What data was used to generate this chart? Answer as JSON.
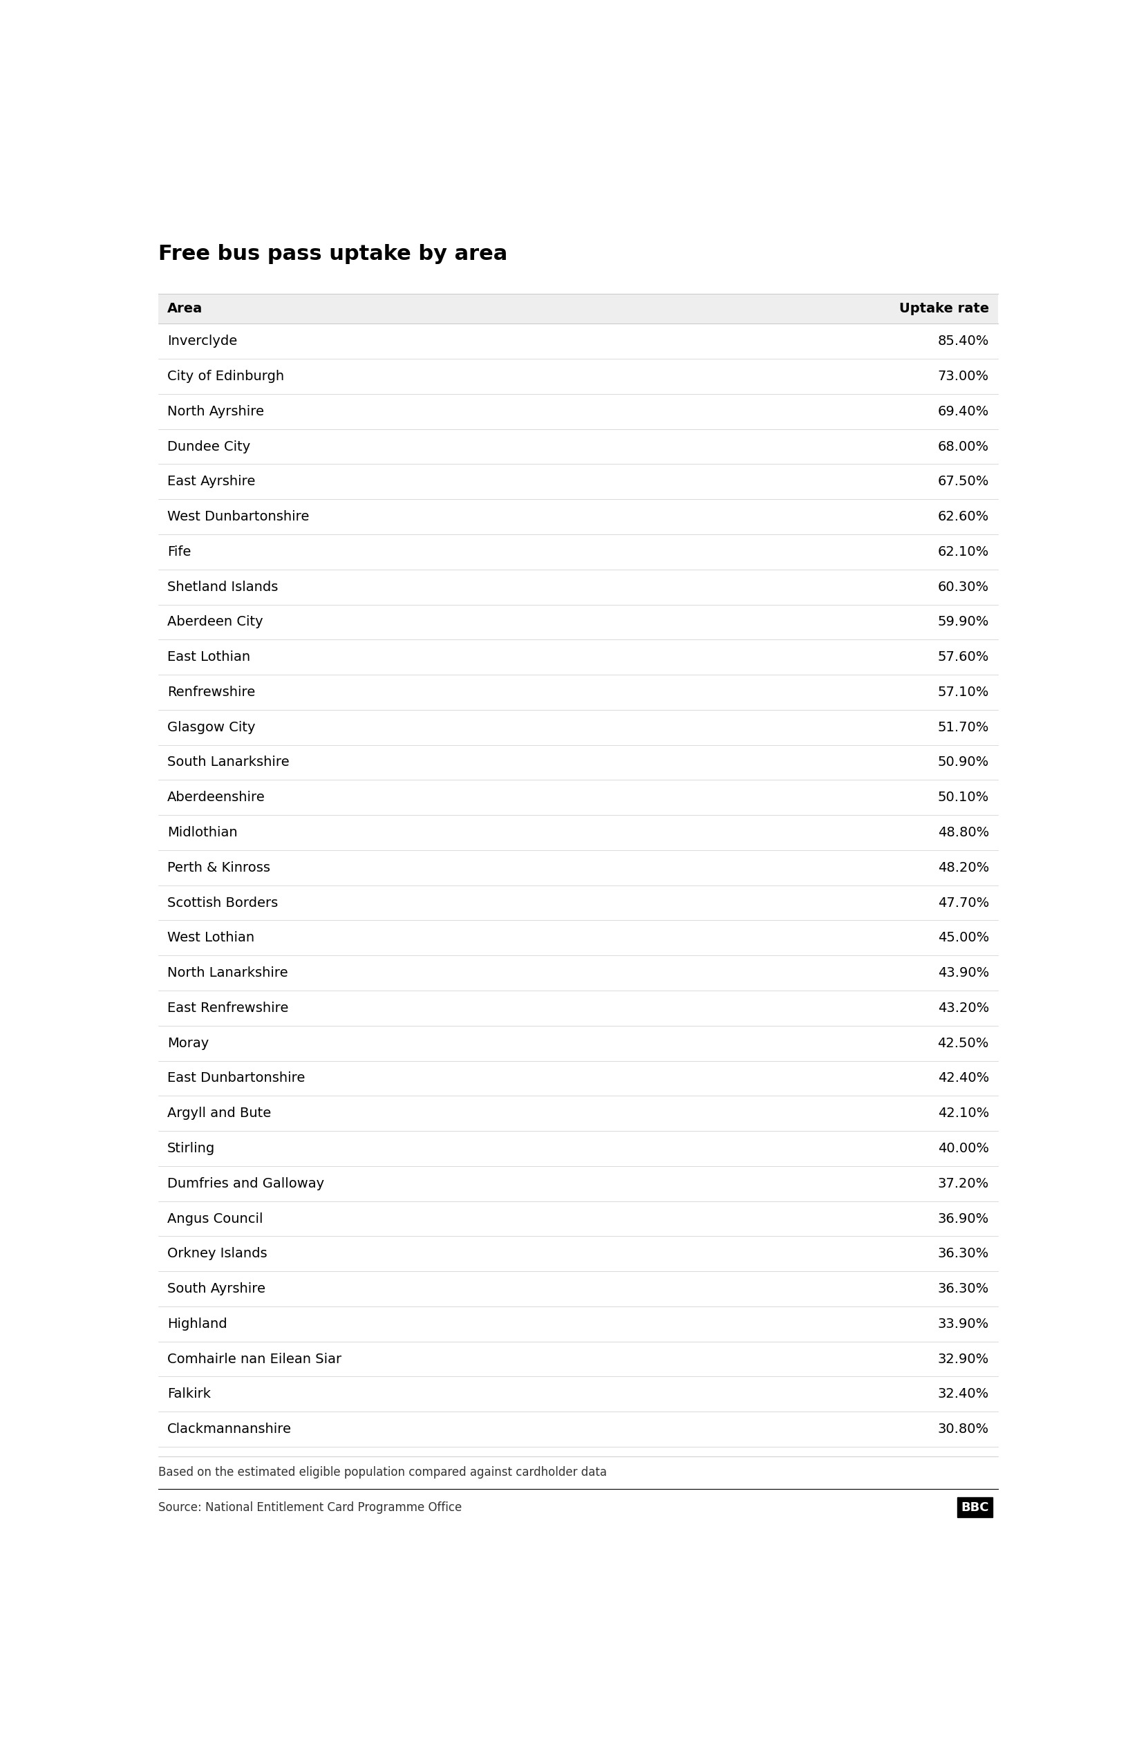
{
  "title": "Free bus pass uptake by area",
  "col1_header": "Area",
  "col2_header": "Uptake rate",
  "rows": [
    [
      "Inverclyde",
      "85.40%"
    ],
    [
      "City of Edinburgh",
      "73.00%"
    ],
    [
      "North Ayrshire",
      "69.40%"
    ],
    [
      "Dundee City",
      "68.00%"
    ],
    [
      "East Ayrshire",
      "67.50%"
    ],
    [
      "West Dunbartonshire",
      "62.60%"
    ],
    [
      "Fife",
      "62.10%"
    ],
    [
      "Shetland Islands",
      "60.30%"
    ],
    [
      "Aberdeen City",
      "59.90%"
    ],
    [
      "East Lothian",
      "57.60%"
    ],
    [
      "Renfrewshire",
      "57.10%"
    ],
    [
      "Glasgow City",
      "51.70%"
    ],
    [
      "South Lanarkshire",
      "50.90%"
    ],
    [
      "Aberdeenshire",
      "50.10%"
    ],
    [
      "Midlothian",
      "48.80%"
    ],
    [
      "Perth & Kinross",
      "48.20%"
    ],
    [
      "Scottish Borders",
      "47.70%"
    ],
    [
      "West Lothian",
      "45.00%"
    ],
    [
      "North Lanarkshire",
      "43.90%"
    ],
    [
      "East Renfrewshire",
      "43.20%"
    ],
    [
      "Moray",
      "42.50%"
    ],
    [
      "East Dunbartonshire",
      "42.40%"
    ],
    [
      "Argyll and Bute",
      "42.10%"
    ],
    [
      "Stirling",
      "40.00%"
    ],
    [
      "Dumfries and Galloway",
      "37.20%"
    ],
    [
      "Angus Council",
      "36.90%"
    ],
    [
      "Orkney Islands",
      "36.30%"
    ],
    [
      "South Ayrshire",
      "36.30%"
    ],
    [
      "Highland",
      "33.90%"
    ],
    [
      "Comhairle nan Eilean Siar",
      "32.90%"
    ],
    [
      "Falkirk",
      "32.40%"
    ],
    [
      "Clackmannanshire",
      "30.80%"
    ]
  ],
  "footnote": "Based on the estimated eligible population compared against cardholder data",
  "source": "Source: National Entitlement Card Programme Office",
  "bbc_logo": "BBC",
  "title_fontsize": 22,
  "header_fontsize": 14,
  "row_fontsize": 14,
  "footnote_fontsize": 12,
  "source_fontsize": 12,
  "title_color": "#000000",
  "header_color": "#000000",
  "row_color": "#000000",
  "header_bg": "#eeeeee",
  "line_color": "#cccccc",
  "background_color": "#ffffff",
  "figure_width": 16.32,
  "figure_height": 25.36
}
